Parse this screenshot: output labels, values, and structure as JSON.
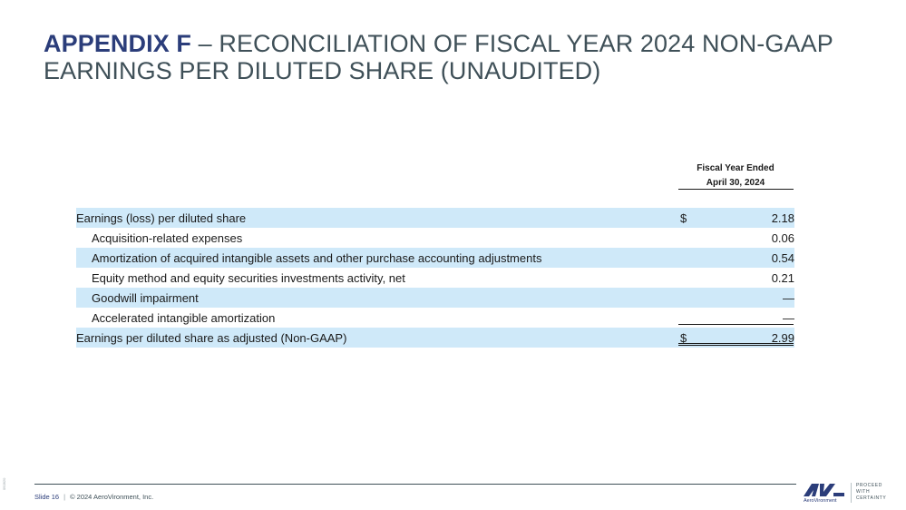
{
  "title": {
    "bold": "APPENDIX F",
    "rest": " – RECONCILIATION OF FISCAL YEAR 2024 NON-GAAP EARNINGS PER DILUTED SHARE (UNAUDITED)"
  },
  "column_header": {
    "line1": "Fiscal Year Ended",
    "line2": "April 30, 2024"
  },
  "rows": [
    {
      "label": "Earnings (loss) per diluted share",
      "currency": "$",
      "value": "2.18"
    },
    {
      "label": "Acquisition-related expenses",
      "currency": "",
      "value": "0.06"
    },
    {
      "label": "Amortization of acquired intangible assets and other purchase accounting adjustments",
      "currency": "",
      "value": "0.54"
    },
    {
      "label": "Equity method and equity securities investments activity, net",
      "currency": "",
      "value": "0.21"
    },
    {
      "label": "Goodwill impairment",
      "currency": "",
      "value": "—"
    },
    {
      "label": "Accelerated intangible amortization",
      "currency": "",
      "value": "—"
    },
    {
      "label": "Earnings per diluted share as adjusted (Non-GAAP)",
      "currency": "$",
      "value": "2.99"
    }
  ],
  "footer": {
    "slide": "Slide 16",
    "separator": "|",
    "copyright": "© 2024 AeroVironment, Inc.",
    "code": "092820"
  },
  "logo": {
    "mark": "AV",
    "brand": "AeroVironment",
    "tagline": [
      "PROCEED",
      "WITH",
      "CERTAINTY"
    ]
  },
  "colors": {
    "title_bold": "#2b3d7a",
    "title_text": "#3f5058",
    "row_shade": "#cfe9f9"
  }
}
